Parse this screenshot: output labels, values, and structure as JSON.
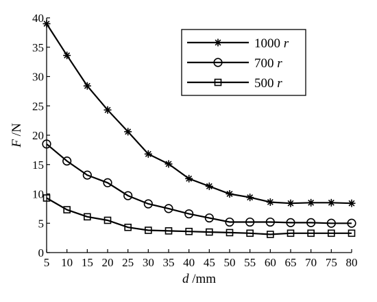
{
  "chart_data": {
    "type": "line",
    "x": [
      5,
      10,
      15,
      20,
      25,
      30,
      35,
      40,
      45,
      50,
      55,
      60,
      65,
      70,
      75,
      80
    ],
    "xticks": [
      5,
      10,
      15,
      20,
      25,
      30,
      35,
      40,
      45,
      50,
      55,
      60,
      65,
      70,
      75,
      80
    ],
    "yticks": [
      0,
      5,
      10,
      15,
      20,
      25,
      30,
      35,
      40
    ],
    "xlim": [
      5,
      80
    ],
    "ylim": [
      0,
      40
    ],
    "xlabel": {
      "var": "d",
      "unit": " /mm"
    },
    "ylabel": {
      "var": "F",
      "unit": " /N"
    },
    "grid": false,
    "legend_position": "top-right",
    "series": [
      {
        "name": "1000",
        "unit": " r",
        "marker": "asterisk",
        "values": [
          39.0,
          33.6,
          28.4,
          24.3,
          20.6,
          16.8,
          15.1,
          12.6,
          11.3,
          10.0,
          9.4,
          8.6,
          8.4,
          8.5,
          8.5,
          8.4
        ]
      },
      {
        "name": "700",
        "unit": " r",
        "marker": "circle",
        "values": [
          18.5,
          15.6,
          13.2,
          11.9,
          9.7,
          8.3,
          7.5,
          6.6,
          5.9,
          5.2,
          5.2,
          5.2,
          5.1,
          5.1,
          5.0,
          5.0
        ]
      },
      {
        "name": "500",
        "unit": " r",
        "marker": "square",
        "values": [
          9.3,
          7.3,
          6.1,
          5.5,
          4.3,
          3.8,
          3.7,
          3.6,
          3.5,
          3.4,
          3.3,
          3.1,
          3.3,
          3.3,
          3.3,
          3.3
        ]
      }
    ]
  }
}
